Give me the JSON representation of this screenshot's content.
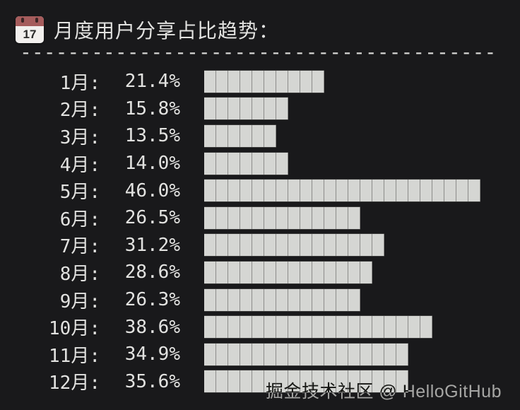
{
  "header": {
    "icon": "calendar-icon",
    "icon_day": "17",
    "title": "月度用户分享占比趋势："
  },
  "separator": "----------------------------------------",
  "chart_data": {
    "type": "bar",
    "orientation": "horizontal",
    "title": "月度用户分享占比趋势",
    "categories": [
      "1月",
      "2月",
      "3月",
      "4月",
      "5月",
      "6月",
      "7月",
      "8月",
      "9月",
      "10月",
      "11月",
      "12月"
    ],
    "values": [
      21.4,
      15.8,
      13.5,
      14.0,
      46.0,
      26.5,
      31.2,
      28.6,
      26.3,
      38.6,
      34.9,
      35.6
    ],
    "unit": "%",
    "xlim": [
      0,
      50
    ],
    "percent_per_segment": 2,
    "grid": false,
    "legend": "none",
    "bar_style": "segmented-blocks"
  },
  "rows": [
    {
      "label": "1月:",
      "value": "21.4%",
      "segments": 10
    },
    {
      "label": "2月:",
      "value": "15.8%",
      "segments": 7
    },
    {
      "label": "3月:",
      "value": "13.5%",
      "segments": 6
    },
    {
      "label": "4月:",
      "value": "14.0%",
      "segments": 7
    },
    {
      "label": "5月:",
      "value": "46.0%",
      "segments": 23
    },
    {
      "label": "6月:",
      "value": "26.5%",
      "segments": 13
    },
    {
      "label": "7月:",
      "value": "31.2%",
      "segments": 15
    },
    {
      "label": "8月:",
      "value": "28.6%",
      "segments": 14
    },
    {
      "label": "9月:",
      "value": "26.3%",
      "segments": 13
    },
    {
      "label": "10月:",
      "value": "38.6%",
      "segments": 19
    },
    {
      "label": "11月:",
      "value": "34.9%",
      "segments": 17
    },
    {
      "label": "12月:",
      "value": "35.6%",
      "segments": 17
    }
  ],
  "watermark": "掘金技术社区 @ HelloGitHub",
  "colors": {
    "background": "#19191b",
    "text": "#e2e2e0",
    "bar": "#d5d6d3",
    "segment_divider": "#8c8c8a",
    "calendar_red": "#a55c5c",
    "watermark": "#bfbfbf"
  }
}
